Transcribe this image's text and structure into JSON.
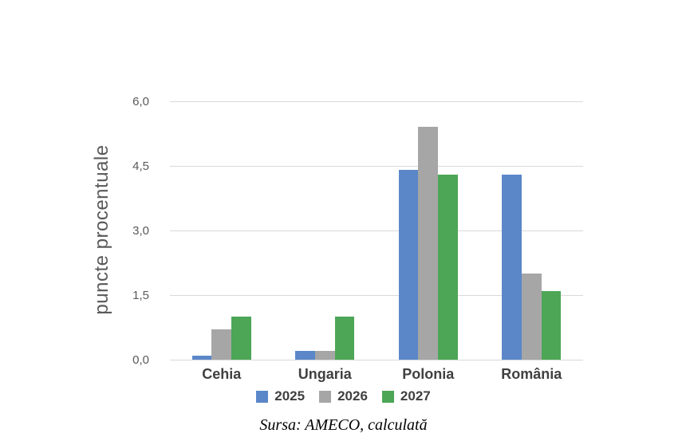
{
  "chart_data": {
    "type": "bar",
    "title": "",
    "categories": [
      "Cehia",
      "Ungaria",
      "Polonia",
      "România"
    ],
    "series": [
      {
        "name": "2025",
        "color": "#5B87C9",
        "values": [
          0.1,
          0.2,
          4.4,
          4.3
        ]
      },
      {
        "name": "2026",
        "color": "#A6A6A6",
        "values": [
          0.7,
          0.2,
          5.4,
          2.0
        ]
      },
      {
        "name": "2027",
        "color": "#4CA656",
        "values": [
          1.0,
          1.0,
          4.3,
          1.6
        ]
      }
    ],
    "xlabel": "",
    "ylabel": "puncte procentuale",
    "ylim": [
      0,
      6
    ],
    "ytick_values": [
      0,
      1.5,
      3,
      4.5,
      6
    ],
    "ytick_labels": [
      "0,0",
      "1,5",
      "3,0",
      "4,5",
      "6,0"
    ],
    "grid": true,
    "legend_position": "bottom"
  },
  "source_note": "Sursa: AMECO, calculată",
  "colors": {
    "gridline": "#D9D9D9",
    "tick_text": "#595959",
    "axis_title_text": "#595959",
    "category_text": "#404040",
    "legend_text": "#404040",
    "background": "#FFFFFF"
  }
}
